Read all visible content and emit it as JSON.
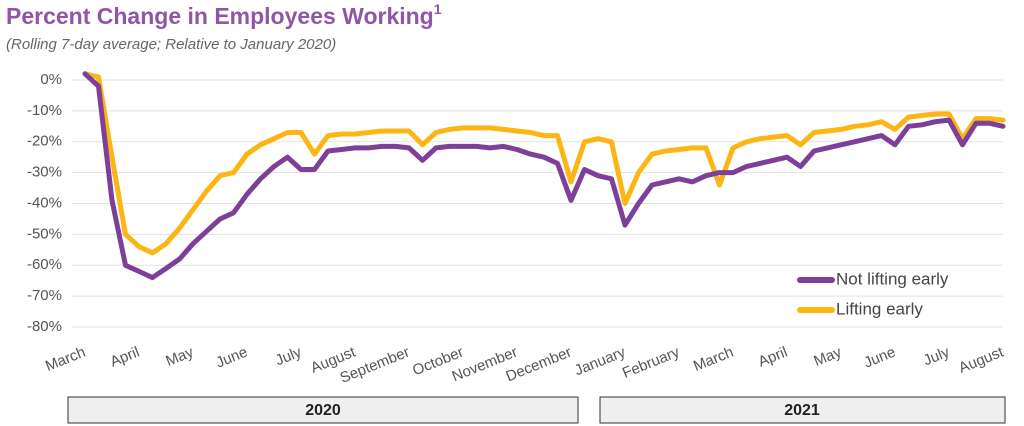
{
  "chart_data": {
    "type": "line",
    "title": "Percent Change in Employees Working",
    "title_note": "1",
    "subtitle": "(Rolling 7-day average; Relative to January 2020)",
    "categories": [
      "March",
      null,
      null,
      null,
      "April",
      null,
      null,
      null,
      "May",
      null,
      null,
      null,
      "June",
      null,
      null,
      null,
      "July",
      null,
      null,
      null,
      "August",
      null,
      null,
      null,
      "September",
      null,
      null,
      null,
      "October",
      null,
      null,
      null,
      "November",
      null,
      null,
      null,
      "December",
      null,
      null,
      null,
      "January",
      null,
      null,
      null,
      "February",
      null,
      null,
      null,
      "March",
      null,
      null,
      null,
      "April",
      null,
      null,
      null,
      "May",
      null,
      null,
      null,
      "June",
      null,
      null,
      null,
      "July",
      null,
      null,
      null,
      "August"
    ],
    "year_labels": [
      "2020",
      "2021"
    ],
    "series": [
      {
        "name": "Not lifting early",
        "color": "#7d3f98",
        "values": [
          2,
          -2,
          -39,
          -60,
          -62,
          -64,
          -61,
          -58,
          -53,
          -49,
          -45,
          -43,
          -37,
          -32,
          -28,
          -25,
          -29,
          -29,
          -23,
          -22.5,
          -22,
          -22,
          -21.5,
          -21.5,
          -22,
          -26,
          -22,
          -21.5,
          -21.5,
          -21.5,
          -22,
          -21.5,
          -22.5,
          -24,
          -25,
          -27,
          -39,
          -29,
          -31,
          -32,
          -47,
          -40,
          -34,
          -33,
          -32,
          -33,
          -31,
          -30,
          -30,
          -28,
          -27,
          -26,
          -25,
          -28,
          -23,
          -22,
          -21,
          -20,
          -19,
          -18,
          -21,
          -15,
          -14.5,
          -13.5,
          -13,
          -21,
          -14,
          -14,
          -15
        ]
      },
      {
        "name": "Lifting early",
        "color": "#fdb515",
        "values": [
          2,
          1,
          -25,
          -50,
          -54,
          -56,
          -53,
          -48,
          -42,
          -36,
          -31,
          -30,
          -24,
          -21,
          -19,
          -17,
          -17,
          -24,
          -18,
          -17.5,
          -17.5,
          -17,
          -16.5,
          -16.5,
          -16.5,
          -21,
          -17,
          -16,
          -15.5,
          -15.5,
          -15.5,
          -16,
          -16.5,
          -17,
          -18,
          -18,
          -33,
          -20,
          -19,
          -20,
          -40,
          -30,
          -24,
          -23,
          -22.5,
          -22,
          -22,
          -34,
          -22,
          -20,
          -19,
          -18.5,
          -18,
          -21,
          -17,
          -16.5,
          -16,
          -15,
          -14.5,
          -13.5,
          -16,
          -12,
          -11.5,
          -11,
          -11,
          -19,
          -12.5,
          -12.5,
          -13
        ]
      }
    ],
    "ylim": [
      -82,
      3
    ],
    "yticks": [
      {
        "value": 0,
        "label": "0%"
      },
      {
        "value": -10,
        "label": "-10%"
      },
      {
        "value": -20,
        "label": "-20%"
      },
      {
        "value": -30,
        "label": "-30%"
      },
      {
        "value": -40,
        "label": "-40%"
      },
      {
        "value": -50,
        "label": "-50%"
      },
      {
        "value": -60,
        "label": "-60%"
      },
      {
        "value": -70,
        "label": "-70%"
      },
      {
        "value": -80,
        "label": "-80%"
      }
    ],
    "grid": true,
    "legend": "lower right"
  }
}
